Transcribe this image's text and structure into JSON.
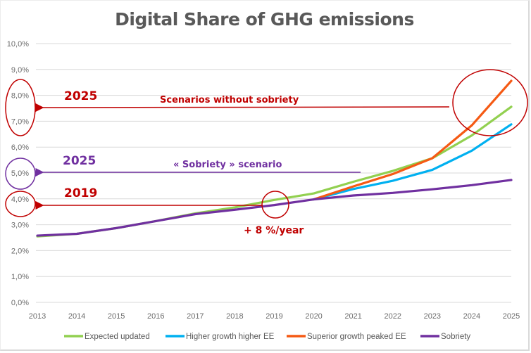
{
  "chart_data": {
    "type": "line",
    "title": "Digital Share of GHG emissions",
    "xlabel": "",
    "ylabel": "",
    "x": [
      "2013",
      "2014",
      "2015",
      "2016",
      "2017",
      "2018",
      "2019",
      "2020",
      "2021",
      "2022",
      "2023",
      "2024",
      "2025"
    ],
    "ylim": [
      0,
      10
    ],
    "yticks": [
      "0,0%",
      "1,0%",
      "2,0%",
      "3,0%",
      "4,0%",
      "5,0%",
      "6,0%",
      "7,0%",
      "8,0%",
      "9,0%",
      "10,0%"
    ],
    "grid": true,
    "legend_position": "bottom",
    "series": [
      {
        "name": "Expected updated",
        "color": "#92d050",
        "values": [
          2.55,
          2.65,
          2.87,
          3.14,
          3.44,
          3.67,
          3.96,
          4.21,
          4.66,
          5.08,
          5.57,
          6.45,
          7.56
        ]
      },
      {
        "name": "Higher growth higher EE",
        "color": "#00b0f0",
        "values": [
          null,
          null,
          null,
          null,
          null,
          null,
          null,
          3.98,
          4.38,
          4.7,
          5.12,
          5.86,
          6.88
        ]
      },
      {
        "name": "Superior growth peaked EE",
        "color": "#f55a14",
        "values": [
          null,
          null,
          null,
          null,
          null,
          null,
          null,
          3.98,
          4.48,
          4.96,
          5.57,
          6.84,
          8.56
        ]
      },
      {
        "name": "Sobriety",
        "color": "#7030a0",
        "values": [
          2.58,
          2.65,
          2.87,
          3.14,
          3.41,
          3.58,
          3.76,
          3.98,
          4.13,
          4.23,
          4.37,
          4.53,
          4.73
        ]
      }
    ],
    "annotations": [
      {
        "id": "scenarios-without-sobriety",
        "text": "Scenarios without sobriety",
        "year_label": "2025",
        "color": "#c00000",
        "points_to_range": "7,0%–8,0%"
      },
      {
        "id": "sobriety-scenario",
        "text": "« Sobriety » scenario",
        "year_label": "2025",
        "color": "#7030a0",
        "points_to_range": "5,0%"
      },
      {
        "id": "baseline-2019",
        "text": "+ 8 %/year",
        "year_label": "2019",
        "color": "#c00000",
        "points_to_range": "4,0%"
      }
    ]
  }
}
